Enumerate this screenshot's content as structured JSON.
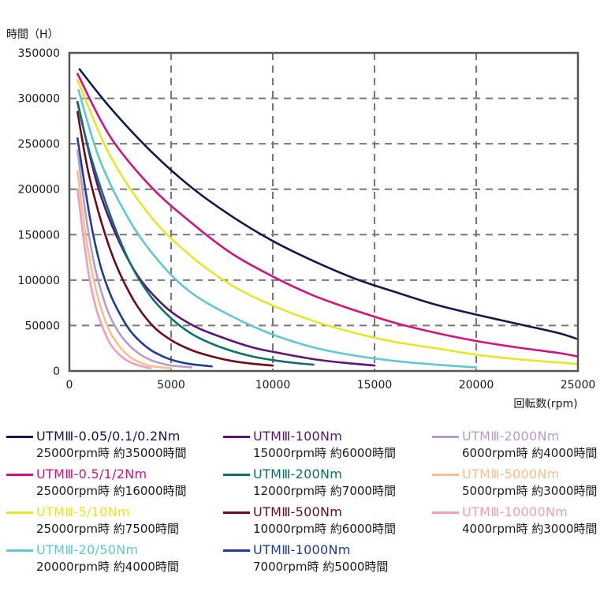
{
  "chart_data": {
    "type": "line",
    "ylabel": "時間（H）",
    "xlabel": "回転数(rpm)",
    "xlim": [
      0,
      25000
    ],
    "ylim": [
      0,
      350000
    ],
    "xticks": [
      0,
      5000,
      10000,
      15000,
      20000,
      25000
    ],
    "yticks": [
      0,
      50000,
      100000,
      150000,
      200000,
      250000,
      300000,
      350000
    ],
    "grid": true,
    "legend_position": "bottom",
    "series": [
      {
        "name": "UTMⅢ-0.05/0.1/0.2Nm",
        "note": "25000rpm時 約35000時間",
        "color": "#13184f",
        "points": [
          [
            500,
            332000
          ],
          [
            2000,
            290000
          ],
          [
            4000,
            242000
          ],
          [
            6000,
            202000
          ],
          [
            8000,
            170000
          ],
          [
            10000,
            143000
          ],
          [
            12000,
            121000
          ],
          [
            14000,
            102000
          ],
          [
            16000,
            87000
          ],
          [
            18000,
            73000
          ],
          [
            20000,
            62000
          ],
          [
            22000,
            52000
          ],
          [
            24000,
            42000
          ],
          [
            25000,
            35000
          ]
        ]
      },
      {
        "name": "UTMⅢ-0.5/1/2Nm",
        "note": "25000rpm時 約16000時間",
        "color": "#d4127f",
        "points": [
          [
            400,
            327000
          ],
          [
            2000,
            258000
          ],
          [
            4000,
            203000
          ],
          [
            6000,
            163000
          ],
          [
            8000,
            129000
          ],
          [
            10000,
            104000
          ],
          [
            12000,
            83000
          ],
          [
            14000,
            67000
          ],
          [
            16000,
            53000
          ],
          [
            18000,
            42000
          ],
          [
            20000,
            33000
          ],
          [
            22000,
            26000
          ],
          [
            24000,
            20000
          ],
          [
            25000,
            16000
          ]
        ]
      },
      {
        "name": "UTMⅢ-5/10Nm",
        "note": "25000rpm時 約7500時間",
        "color": "#e8e624",
        "points": [
          [
            400,
            320000
          ],
          [
            2000,
            237000
          ],
          [
            4000,
            170000
          ],
          [
            6000,
            126000
          ],
          [
            8000,
            94000
          ],
          [
            10000,
            72000
          ],
          [
            12000,
            55000
          ],
          [
            14000,
            42000
          ],
          [
            16000,
            32000
          ],
          [
            18000,
            25000
          ],
          [
            20000,
            18000
          ],
          [
            22000,
            13000
          ],
          [
            24000,
            9500
          ],
          [
            25000,
            7500
          ]
        ]
      },
      {
        "name": "UTMⅢ-20/50Nm",
        "note": "20000rpm時 約4000時間",
        "color": "#5ec8d4",
        "points": [
          [
            450,
            309000
          ],
          [
            1500,
            232000
          ],
          [
            3000,
            164000
          ],
          [
            4500,
            118000
          ],
          [
            6000,
            86000
          ],
          [
            8000,
            60000
          ],
          [
            10000,
            40000
          ],
          [
            12000,
            26000
          ],
          [
            14000,
            17000
          ],
          [
            16000,
            11000
          ],
          [
            18000,
            7000
          ],
          [
            20000,
            4000
          ]
        ]
      },
      {
        "name": "UTMⅢ-100Nm",
        "note": "15000rpm時 約6000時間",
        "color": "#5d1377",
        "points": [
          [
            400,
            296000
          ],
          [
            1500,
            196000
          ],
          [
            3000,
            118000
          ],
          [
            4500,
            75000
          ],
          [
            6000,
            51000
          ],
          [
            7500,
            37000
          ],
          [
            9000,
            26000
          ],
          [
            10500,
            19000
          ],
          [
            12000,
            13000
          ],
          [
            13500,
            9000
          ],
          [
            15000,
            6000
          ]
        ]
      },
      {
        "name": "UTMⅢ-200Nm",
        "note": "12000rpm時 約7000時間",
        "color": "#0a716b",
        "points": [
          [
            400,
            295000
          ],
          [
            1000,
            240000
          ],
          [
            2000,
            172000
          ],
          [
            3000,
            118000
          ],
          [
            4000,
            82000
          ],
          [
            5000,
            58000
          ],
          [
            6000,
            41000
          ],
          [
            7000,
            30000
          ],
          [
            8000,
            22000
          ],
          [
            9000,
            16000
          ],
          [
            10000,
            12000
          ],
          [
            11000,
            9000
          ],
          [
            12000,
            7000
          ]
        ]
      },
      {
        "name": "UTMⅢ-500Nm",
        "note": "10000rpm時 約6000時間",
        "color": "#6f0a1a",
        "points": [
          [
            400,
            285000
          ],
          [
            1000,
            212000
          ],
          [
            2000,
            134000
          ],
          [
            3000,
            84000
          ],
          [
            4000,
            52000
          ],
          [
            5000,
            34000
          ],
          [
            6000,
            23000
          ],
          [
            7000,
            16000
          ],
          [
            8000,
            11000
          ],
          [
            9000,
            8000
          ],
          [
            10000,
            6000
          ]
        ]
      },
      {
        "name": "UTMⅢ-1000Nm",
        "note": "7000rpm時 約5000時間",
        "color": "#1e3d96",
        "points": [
          [
            400,
            256000
          ],
          [
            1000,
            170000
          ],
          [
            1500,
            118000
          ],
          [
            2000,
            85000
          ],
          [
            2500,
            62000
          ],
          [
            3000,
            44000
          ],
          [
            3500,
            32000
          ],
          [
            4000,
            23000
          ],
          [
            4500,
            17000
          ],
          [
            5000,
            12500
          ],
          [
            5500,
            9500
          ],
          [
            6000,
            7500
          ],
          [
            7000,
            5000
          ]
        ]
      },
      {
        "name": "UTMⅢ-2000Nm",
        "note": "6000rpm時 約4000時間",
        "color": "#b69ccb",
        "points": [
          [
            400,
            243000
          ],
          [
            800,
            173000
          ],
          [
            1200,
            120000
          ],
          [
            1600,
            85000
          ],
          [
            2000,
            60000
          ],
          [
            2500,
            40000
          ],
          [
            3000,
            27000
          ],
          [
            3500,
            18000
          ],
          [
            4000,
            12000
          ],
          [
            4500,
            8500
          ],
          [
            5000,
            6000
          ],
          [
            6000,
            4000
          ]
        ]
      },
      {
        "name": "UTMⅢ-5000Nm",
        "note": "5000rpm時 約3000時間",
        "color": "#f6c08b",
        "points": [
          [
            400,
            220000
          ],
          [
            800,
            150000
          ],
          [
            1200,
            100000
          ],
          [
            1600,
            66000
          ],
          [
            2000,
            43000
          ],
          [
            2500,
            26000
          ],
          [
            3000,
            15000
          ],
          [
            3500,
            9000
          ],
          [
            4000,
            5500
          ],
          [
            5000,
            3000
          ]
        ]
      },
      {
        "name": "UTMⅢ-10000Nm",
        "note": "4000rpm時 約3000時間",
        "color": "#f39cc0",
        "points": [
          [
            400,
            200000
          ],
          [
            700,
            145000
          ],
          [
            1000,
            100000
          ],
          [
            1300,
            70000
          ],
          [
            1600,
            50000
          ],
          [
            2000,
            30000
          ],
          [
            2500,
            17000
          ],
          [
            3000,
            9500
          ],
          [
            3500,
            5500
          ],
          [
            4000,
            3000
          ]
        ]
      }
    ]
  }
}
